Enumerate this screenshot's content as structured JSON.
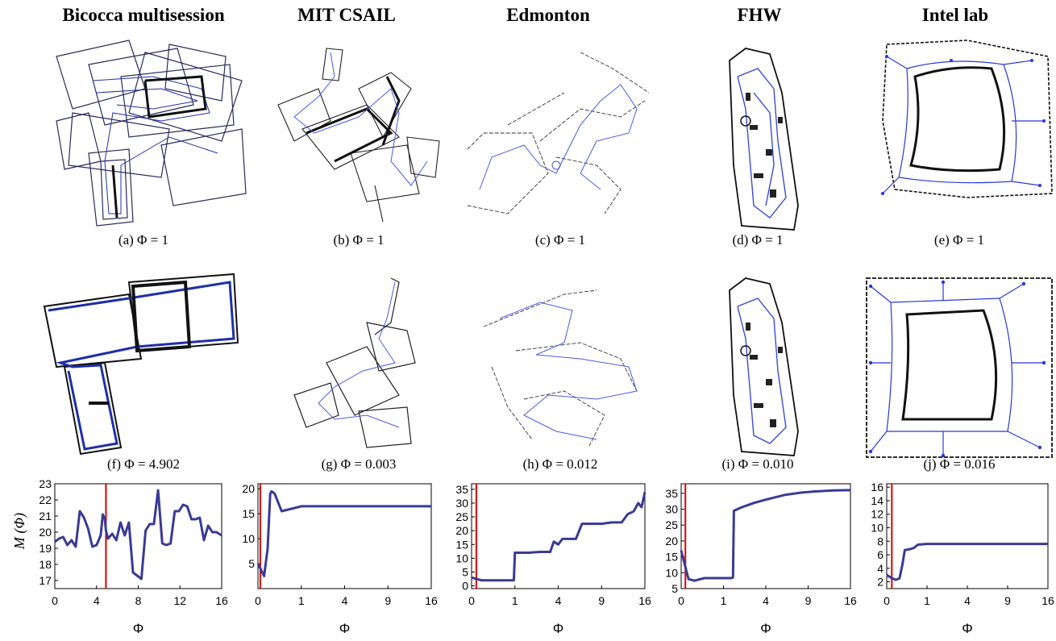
{
  "columns": [
    {
      "title": "Bicocca multisession",
      "caption_top": "(a)  Φ = 1",
      "caption_bottom": "(f)  Φ = 4.902"
    },
    {
      "title": "MIT  CSAIL",
      "caption_top": "(b)  Φ = 1",
      "caption_bottom": "(g)  Φ = 0.003"
    },
    {
      "title": "Edmonton",
      "caption_top": "(c)  Φ = 1",
      "caption_bottom": "(h)  Φ = 0.012"
    },
    {
      "title": "FHW",
      "caption_top": "(d)  Φ = 1",
      "caption_bottom": "(i)  Φ = 0.010"
    },
    {
      "title": "Intel lab",
      "caption_top": "(e)  Φ = 1",
      "caption_bottom": "(j)  Φ = 0.016"
    }
  ],
  "shared_ylabel": "M (Φ)",
  "colors": {
    "series": "#3a3a96",
    "marker": "#dd0000",
    "map_lines": "#222222",
    "trajectory": "#4a5ae8"
  },
  "chart_data": [
    {
      "type": "line",
      "xlabel": "Φ",
      "xlim": [
        0,
        16
      ],
      "ylim": [
        16.5,
        23
      ],
      "xticks": [
        0,
        4,
        8,
        12,
        16
      ],
      "yticks": [
        17,
        18,
        19,
        20,
        21,
        22,
        23
      ],
      "marker_x": 4.902,
      "x": [
        0,
        0.4,
        0.8,
        1.2,
        1.6,
        2.0,
        2.4,
        2.8,
        3.2,
        3.6,
        4.0,
        4.4,
        4.6,
        4.8,
        4.9,
        5.1,
        5.5,
        5.9,
        6.3,
        6.7,
        7.1,
        7.5,
        7.9,
        8.3,
        8.7,
        9.1,
        9.5,
        9.9,
        10.3,
        10.7,
        11.1,
        11.5,
        11.9,
        12.3,
        12.7,
        13.1,
        13.5,
        13.9,
        14.3,
        14.7,
        15.1,
        15.5,
        16
      ],
      "y": [
        19.4,
        19.6,
        19.7,
        19.2,
        19.5,
        19.1,
        21.3,
        20.9,
        20.2,
        19.1,
        19.2,
        19.8,
        21.1,
        20.8,
        20.1,
        19.6,
        19.9,
        19.5,
        20.6,
        19.8,
        20.6,
        17.5,
        17.3,
        17.1,
        20.1,
        20.5,
        20.5,
        22.6,
        19.3,
        19.2,
        19.3,
        21.3,
        21.3,
        21.7,
        21.6,
        20.8,
        20.8,
        20.9,
        19.5,
        20.4,
        20.0,
        20.0,
        19.8
      ]
    },
    {
      "type": "line",
      "xlabel": "Φ",
      "xlim": [
        0,
        16
      ],
      "ylim": [
        0,
        21
      ],
      "xticks": [
        0,
        1,
        4,
        9,
        16
      ],
      "tick_scale": "sqrt",
      "yticks": [
        5,
        10,
        15,
        20
      ],
      "marker_x": 0.003,
      "x": [
        0,
        0.02,
        0.05,
        0.08,
        0.1,
        0.15,
        0.3,
        0.6,
        1,
        2,
        4,
        9,
        16
      ],
      "y": [
        5,
        2.5,
        8,
        19,
        19.5,
        19,
        15.5,
        16,
        16.5,
        16.5,
        16.5,
        16.5,
        16.5
      ]
    },
    {
      "type": "line",
      "xlabel": "Φ",
      "xlim": [
        0,
        16
      ],
      "ylim": [
        -1,
        37
      ],
      "xticks": [
        0,
        1,
        4,
        9,
        16
      ],
      "tick_scale": "sqrt",
      "yticks": [
        0,
        5,
        10,
        15,
        20,
        25,
        30,
        35
      ],
      "marker_x": 0.012,
      "x": [
        0,
        0.05,
        0.5,
        0.95,
        1.0,
        1.7,
        2.5,
        3.3,
        3.6,
        4.0,
        4.4,
        5.0,
        5.8,
        6.5,
        7.5,
        9.0,
        10.5,
        12.0,
        13.0,
        14.0,
        14.8,
        15.4,
        16
      ],
      "y": [
        3,
        2,
        2,
        2,
        12,
        12,
        12.3,
        12.3,
        16,
        15,
        17,
        17,
        17,
        22.5,
        22.5,
        22.5,
        23,
        23,
        26,
        27,
        30,
        28.5,
        34
      ]
    },
    {
      "type": "line",
      "xlabel": "Φ",
      "xlim": [
        0,
        16
      ],
      "ylim": [
        5,
        38
      ],
      "xticks": [
        0,
        1,
        4,
        9,
        16
      ],
      "tick_scale": "sqrt",
      "yticks": [
        5,
        10,
        15,
        20,
        25,
        30,
        35
      ],
      "marker_x": 0.01,
      "x": [
        0,
        0.03,
        0.1,
        0.3,
        0.5,
        0.8,
        1.2,
        1.4,
        1.5,
        1.55,
        2,
        3,
        4,
        6,
        8,
        10,
        13,
        16
      ],
      "y": [
        17,
        8,
        7.5,
        8.3,
        8.3,
        8.3,
        8.3,
        8.3,
        8.5,
        29.5,
        30.5,
        32,
        33,
        34.5,
        35.2,
        35.6,
        35.9,
        36
      ]
    },
    {
      "type": "line",
      "xlabel": "Φ",
      "xlim": [
        0,
        16
      ],
      "ylim": [
        1,
        16.5
      ],
      "xticks": [
        0,
        1,
        4,
        9,
        16
      ],
      "tick_scale": "sqrt",
      "yticks": [
        2,
        4,
        6,
        8,
        10,
        12,
        14,
        16
      ],
      "marker_x": 0.016,
      "x": [
        0,
        0.02,
        0.05,
        0.1,
        0.15,
        0.2,
        0.3,
        0.45,
        0.6,
        1,
        4,
        9,
        16
      ],
      "y": [
        3,
        2.5,
        2.3,
        2.5,
        4.5,
        6.7,
        6.8,
        7.0,
        7.5,
        7.6,
        7.6,
        7.6,
        7.6
      ]
    }
  ]
}
